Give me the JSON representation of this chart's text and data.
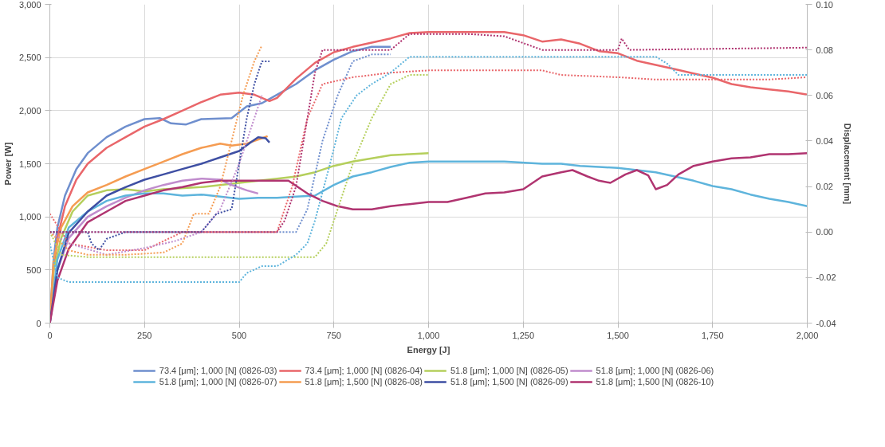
{
  "chart_data": {
    "type": "line",
    "xlabel": "Energy [J]",
    "ylabel": "Power [W]",
    "y2label": "Displacement [mm]",
    "xlim": [
      0,
      2000
    ],
    "ylim": [
      0,
      3000
    ],
    "y2lim": [
      -0.04,
      0.1
    ],
    "xticks": [
      0,
      250,
      500,
      750,
      {
        "value": 1000,
        "label": "1,000"
      },
      {
        "value": 1250,
        "label": "1,250"
      },
      {
        "value": 1500,
        "label": "1,500"
      },
      {
        "value": 1750,
        "label": "1,750"
      },
      {
        "value": 2000,
        "label": "2,000"
      }
    ],
    "yticks": [
      0,
      500,
      {
        "value": 1000,
        "label": "1,000"
      },
      {
        "value": 1500,
        "label": "1,500"
      },
      {
        "value": 2000,
        "label": "2,000"
      },
      {
        "value": 2500,
        "label": "2,500"
      },
      {
        "value": 3000,
        "label": "3,000"
      }
    ],
    "y2ticks": [
      {
        "value": -0.04,
        "label": "-0.04"
      },
      {
        "value": -0.02,
        "label": "-0.02"
      },
      {
        "value": 0,
        "label": "0.00"
      },
      {
        "value": 0.02,
        "label": "0.02"
      },
      {
        "value": 0.04,
        "label": "0.04"
      },
      {
        "value": 0.06,
        "label": "0.06"
      },
      {
        "value": 0.08,
        "label": "0.08"
      },
      {
        "value": 0.1,
        "label": "0.10"
      }
    ],
    "grid": true,
    "legend": "bottom",
    "line_style": "solid",
    "series": [
      {
        "name": "73.4 [μm]; 1,000 [N] (0826-03)",
        "color": "#6f8fce",
        "x": [
          0,
          5,
          10,
          20,
          40,
          70,
          100,
          150,
          200,
          250,
          290,
          320,
          360,
          400,
          480,
          520,
          560,
          600,
          650,
          700,
          750,
          800,
          850,
          900
        ],
        "values": [
          0,
          300,
          600,
          900,
          1200,
          1450,
          1600,
          1750,
          1850,
          1920,
          1930,
          1880,
          1870,
          1920,
          1930,
          2040,
          2070,
          2150,
          2250,
          2380,
          2480,
          2560,
          2600,
          2600
        ]
      },
      {
        "name": "73.4 [μm]; 1,000 [N] (0826-04)",
        "color": "#e9666a",
        "x": [
          0,
          10,
          20,
          40,
          70,
          100,
          150,
          200,
          250,
          300,
          350,
          400,
          450,
          500,
          540,
          580,
          600,
          650,
          700,
          750,
          800,
          850,
          900,
          950,
          1000,
          1100,
          1200,
          1250,
          1300,
          1350,
          1400,
          1450,
          1500,
          1550,
          1600,
          1650,
          1700,
          1750,
          1800,
          1850,
          1900,
          1950,
          2000
        ],
        "values": [
          0,
          500,
          800,
          1100,
          1350,
          1500,
          1650,
          1750,
          1850,
          1920,
          2000,
          2080,
          2150,
          2170,
          2150,
          2090,
          2120,
          2300,
          2450,
          2550,
          2600,
          2640,
          2680,
          2730,
          2740,
          2740,
          2740,
          2710,
          2650,
          2670,
          2630,
          2560,
          2540,
          2470,
          2430,
          2390,
          2350,
          2310,
          2250,
          2220,
          2200,
          2180,
          2150
        ]
      },
      {
        "name": "51.8 [μm]; 1,000 [N] (0826-05)",
        "color": "#b5cf5c",
        "x": [
          0,
          10,
          30,
          60,
          100,
          150,
          200,
          250,
          300,
          400,
          500,
          600,
          650,
          700,
          750,
          800,
          850,
          900,
          950,
          1000
        ],
        "values": [
          0,
          500,
          800,
          1050,
          1200,
          1250,
          1260,
          1240,
          1260,
          1280,
          1320,
          1360,
          1380,
          1420,
          1480,
          1520,
          1550,
          1580,
          1590,
          1600
        ]
      },
      {
        "name": "51.8 [μm]; 1,000 [N] (0826-06)",
        "color": "#c08ccd",
        "x": [
          0,
          20,
          50,
          100,
          150,
          200,
          250,
          300,
          350,
          400,
          450,
          480,
          520,
          550
        ],
        "values": [
          0,
          500,
          800,
          1000,
          1100,
          1180,
          1250,
          1300,
          1340,
          1360,
          1350,
          1300,
          1250,
          1220
        ]
      },
      {
        "name": "51.8 [μm]; 1,000 [N] (0826-07)",
        "color": "#5eb4dc",
        "x": [
          0,
          20,
          50,
          100,
          150,
          200,
          250,
          300,
          350,
          400,
          450,
          500,
          550,
          600,
          650,
          700,
          750,
          800,
          850,
          900,
          950,
          1000,
          1100,
          1200,
          1300,
          1350,
          1400,
          1450,
          1500,
          1550,
          1600,
          1650,
          1700,
          1750,
          1800,
          1850,
          1900,
          1950,
          2000
        ],
        "values": [
          0,
          600,
          900,
          1050,
          1150,
          1200,
          1220,
          1220,
          1200,
          1210,
          1190,
          1170,
          1180,
          1180,
          1190,
          1200,
          1300,
          1380,
          1420,
          1470,
          1510,
          1520,
          1520,
          1520,
          1500,
          1500,
          1480,
          1470,
          1460,
          1440,
          1420,
          1380,
          1340,
          1290,
          1260,
          1210,
          1170,
          1140,
          1100
        ]
      },
      {
        "name": "51.8 [μm]; 1,500 [N] (0826-08)",
        "color": "#f59c52",
        "x": [
          0,
          10,
          30,
          60,
          100,
          150,
          200,
          250,
          300,
          350,
          400,
          450,
          480,
          520,
          560,
          575
        ],
        "values": [
          0,
          600,
          900,
          1100,
          1230,
          1300,
          1380,
          1450,
          1520,
          1590,
          1650,
          1690,
          1670,
          1690,
          1740,
          1760
        ]
      },
      {
        "name": "51.8 [μm]; 1,500 [N] (0826-09)",
        "color": "#3e4fa3",
        "x": [
          0,
          20,
          50,
          100,
          150,
          200,
          250,
          300,
          350,
          400,
          450,
          500,
          530,
          550,
          570,
          580
        ],
        "values": [
          0,
          500,
          850,
          1050,
          1200,
          1280,
          1350,
          1400,
          1450,
          1500,
          1560,
          1620,
          1700,
          1750,
          1740,
          1700
        ]
      },
      {
        "name": "51.8 [μm]; 1,500 [N] (0826-10)",
        "color": "#b03470",
        "x": [
          0,
          20,
          50,
          100,
          150,
          200,
          250,
          300,
          350,
          400,
          450,
          500,
          550,
          600,
          630,
          680,
          720,
          760,
          800,
          850,
          900,
          950,
          1000,
          1050,
          1100,
          1150,
          1200,
          1250,
          1300,
          1350,
          1380,
          1420,
          1450,
          1480,
          1520,
          1550,
          1580,
          1600,
          1630,
          1660,
          1700,
          1750,
          1800,
          1850,
          1900,
          1950,
          2000
        ],
        "values": [
          0,
          400,
          700,
          950,
          1050,
          1150,
          1200,
          1250,
          1280,
          1320,
          1340,
          1340,
          1340,
          1340,
          1340,
          1220,
          1150,
          1100,
          1070,
          1070,
          1100,
          1120,
          1140,
          1140,
          1180,
          1220,
          1230,
          1260,
          1380,
          1420,
          1440,
          1380,
          1340,
          1320,
          1400,
          1440,
          1390,
          1260,
          1300,
          1400,
          1480,
          1520,
          1550,
          1560,
          1590,
          1590,
          1600
        ]
      },
      {
        "color": "#6f8fce",
        "axis": "y2",
        "line_style": "dotted",
        "x": [
          0,
          650,
          680,
          720,
          760,
          800,
          850,
          900
        ],
        "values": [
          0,
          0,
          0.01,
          0.04,
          0.06,
          0.075,
          0.078,
          0.078
        ]
      },
      {
        "color": "#e9666a",
        "axis": "y2",
        "line_style": "dotted",
        "x": [
          0,
          50,
          150,
          250,
          300,
          350,
          600,
          640,
          680,
          720,
          800,
          900,
          1000,
          1300,
          1350,
          1500,
          1600,
          1900,
          2000
        ],
        "values": [
          0.008,
          -0.005,
          -0.008,
          -0.008,
          -0.004,
          0,
          0,
          0.02,
          0.05,
          0.065,
          0.068,
          0.07,
          0.071,
          0.071,
          0.069,
          0.068,
          0.067,
          0.067,
          0.068
        ]
      },
      {
        "color": "#b5cf5c",
        "axis": "y2",
        "line_style": "dotted",
        "x": [
          0,
          30,
          100,
          700,
          730,
          760,
          800,
          850,
          900,
          950,
          1000
        ],
        "values": [
          0,
          -0.01,
          -0.011,
          -0.011,
          -0.005,
          0.01,
          0.03,
          0.05,
          0.065,
          0.069,
          0.069
        ]
      },
      {
        "color": "#c08ccd",
        "axis": "y2",
        "line_style": "dotted",
        "x": [
          0,
          50,
          150,
          250,
          330,
          400,
          450,
          500,
          540,
          560
        ],
        "values": [
          0,
          -0.005,
          -0.01,
          -0.007,
          -0.004,
          0,
          0.01,
          0.03,
          0.05,
          0.06
        ]
      },
      {
        "color": "#5eb4dc",
        "axis": "y2",
        "line_style": "dotted",
        "x": [
          0,
          20,
          50,
          500,
          520,
          560,
          600,
          650,
          680,
          700,
          740,
          770,
          810,
          850,
          900,
          950,
          1000,
          1600,
          1630,
          1660,
          1700,
          2000
        ],
        "values": [
          -0.005,
          -0.02,
          -0.022,
          -0.022,
          -0.018,
          -0.015,
          -0.015,
          -0.01,
          -0.005,
          0.005,
          0.03,
          0.05,
          0.06,
          0.065,
          0.07,
          0.077,
          0.077,
          0.077,
          0.074,
          0.069,
          0.069,
          0.069
        ]
      },
      {
        "color": "#f59c52",
        "axis": "y2",
        "line_style": "dotted",
        "x": [
          0,
          50,
          100,
          200,
          300,
          350,
          380,
          420,
          450,
          480,
          510,
          540,
          560
        ],
        "values": [
          0,
          -0.008,
          -0.01,
          -0.01,
          -0.009,
          -0.005,
          0.008,
          0.008,
          0.02,
          0.04,
          0.06,
          0.075,
          0.082
        ]
      },
      {
        "color": "#3e4fa3",
        "axis": "y2",
        "line_style": "dotted",
        "x": [
          0,
          100,
          110,
          130,
          150,
          200,
          400,
          440,
          480,
          500,
          520,
          540,
          560,
          580
        ],
        "values": [
          0,
          0,
          -0.005,
          -0.008,
          -0.003,
          0,
          0,
          0.008,
          0.01,
          0.03,
          0.05,
          0.065,
          0.075,
          0.075
        ]
      },
      {
        "color": "#b03470",
        "axis": "y2",
        "line_style": "dotted",
        "x": [
          0,
          600,
          620,
          650,
          680,
          700,
          720,
          900,
          950,
          1000,
          1100,
          1200,
          1300,
          1500,
          1510,
          1530,
          2000
        ],
        "values": [
          0,
          0,
          0.005,
          0.02,
          0.05,
          0.07,
          0.08,
          0.08,
          0.087,
          0.087,
          0.087,
          0.086,
          0.08,
          0.08,
          0.085,
          0.08,
          0.081
        ]
      }
    ]
  }
}
